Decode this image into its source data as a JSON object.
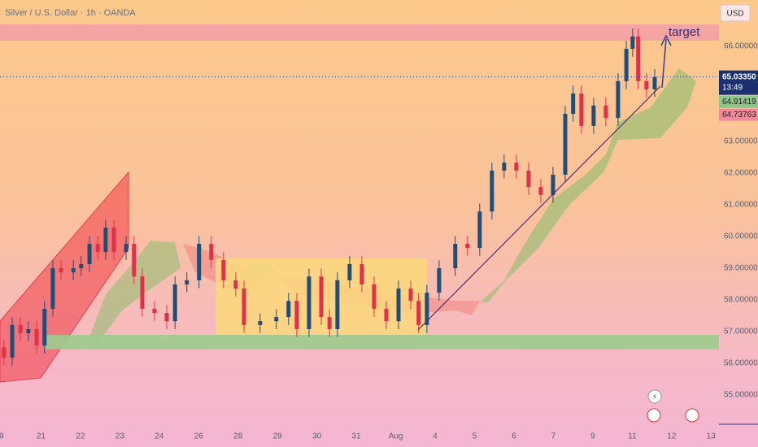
{
  "chart_data": {
    "type": "candlestick",
    "title": "Silver / U.S. Dollar · 1h · OANDA",
    "currency": "USD",
    "annotation": "target",
    "ylim": [
      54.08,
      67.46
    ],
    "xlim": [
      -0.04,
      18.2
    ],
    "grid": false,
    "yticks": [
      {
        "value": 66,
        "label": "66.00000"
      },
      {
        "value": 63,
        "label": "63.00000"
      },
      {
        "value": 62,
        "label": "62.00000"
      },
      {
        "value": 61,
        "label": "61.00000"
      },
      {
        "value": 60,
        "label": "60.00000"
      },
      {
        "value": 59,
        "label": "59.00000"
      },
      {
        "value": 58,
        "label": "58.00000"
      },
      {
        "value": 57,
        "label": "57.00000"
      },
      {
        "value": 56,
        "label": "56.00000"
      },
      {
        "value": 55,
        "label": "55.00000"
      }
    ],
    "xticks": [
      {
        "value": 0,
        "label": "9"
      },
      {
        "value": 1,
        "label": "21"
      },
      {
        "value": 2,
        "label": "22"
      },
      {
        "value": 3,
        "label": "23"
      },
      {
        "value": 4,
        "label": "24"
      },
      {
        "value": 5,
        "label": "26"
      },
      {
        "value": 6,
        "label": "28"
      },
      {
        "value": 7,
        "label": "29"
      },
      {
        "value": 8,
        "label": "30"
      },
      {
        "value": 9,
        "label": "31"
      },
      {
        "value": 10,
        "label": "Aug"
      },
      {
        "value": 11,
        "label": "4"
      },
      {
        "value": 12,
        "label": "5"
      },
      {
        "value": 13,
        "label": "6"
      },
      {
        "value": 14,
        "label": "7"
      },
      {
        "value": 15,
        "label": "9"
      },
      {
        "value": 16,
        "label": "11"
      },
      {
        "value": 17,
        "label": "12"
      },
      {
        "value": 18,
        "label": "13"
      }
    ],
    "up_color": "#1f4e79",
    "down_color": "#e0314b",
    "x": [
      0.06,
      0.27,
      0.48,
      0.68,
      0.89,
      1.09,
      1.3,
      1.51,
      1.82,
      2.02,
      2.23,
      2.44,
      2.64,
      2.85,
      3.16,
      3.36,
      3.57,
      3.88,
      4.19,
      4.4,
      4.7,
      5.01,
      5.32,
      5.63,
      5.94,
      6.15,
      6.56,
      6.97,
      7.28,
      7.49,
      7.8,
      8.11,
      8.32,
      8.52,
      8.83,
      9.14,
      9.45,
      9.76,
      10.07,
      10.38,
      10.58,
      10.79,
      11.1,
      11.51,
      11.82,
      12.13,
      12.44,
      12.75,
      13.06,
      13.37,
      13.68,
      13.99,
      14.3,
      14.5,
      14.71,
      15.02,
      15.33,
      15.64,
      15.85,
      16.01,
      16.15,
      16.36,
      16.57
    ],
    "open": [
      56.5,
      56.18,
      57.21,
      56.95,
      57.08,
      56.56,
      57.72,
      59.0,
      58.87,
      59.0,
      59.13,
      59.77,
      59.51,
      60.28,
      59.51,
      59.77,
      58.74,
      57.72,
      57.59,
      57.33,
      58.49,
      58.62,
      59.77,
      59.26,
      58.62,
      58.36,
      57.21,
      57.33,
      57.46,
      57.97,
      57.08,
      58.74,
      57.46,
      57.08,
      58.62,
      59.13,
      58.49,
      57.72,
      57.33,
      58.36,
      57.97,
      57.21,
      58.23,
      59.0,
      59.77,
      59.64,
      60.79,
      62.08,
      62.33,
      62.08,
      61.56,
      61.31,
      61.95,
      63.87,
      64.51,
      63.49,
      64.13,
      63.74,
      64.9,
      65.92,
      66.31,
      64.9,
      64.64
    ],
    "high": [
      56.75,
      57.46,
      57.46,
      57.33,
      57.33,
      57.97,
      59.25,
      59.25,
      59.25,
      59.38,
      60.02,
      60.02,
      60.53,
      60.53,
      60.02,
      60.02,
      58.99,
      57.97,
      57.84,
      58.74,
      58.87,
      60.02,
      60.02,
      59.51,
      58.87,
      58.61,
      57.58,
      57.71,
      58.22,
      58.22,
      58.99,
      58.99,
      57.71,
      58.87,
      59.38,
      59.38,
      58.74,
      57.97,
      58.61,
      58.61,
      58.22,
      58.48,
      59.25,
      60.02,
      60.02,
      61.04,
      62.33,
      62.58,
      62.58,
      62.33,
      61.81,
      62.2,
      64.12,
      64.76,
      64.76,
      64.38,
      64.38,
      65.15,
      66.17,
      66.56,
      66.56,
      65.15,
      65.28
    ],
    "low": [
      55.93,
      55.93,
      56.7,
      56.7,
      56.31,
      56.31,
      57.47,
      58.62,
      58.62,
      58.75,
      58.88,
      59.26,
      59.26,
      59.26,
      59.26,
      58.49,
      57.47,
      57.34,
      57.08,
      57.08,
      58.24,
      58.37,
      59.01,
      58.37,
      58.11,
      56.96,
      56.96,
      57.08,
      57.21,
      56.83,
      56.83,
      57.21,
      56.83,
      56.83,
      58.37,
      58.24,
      57.47,
      57.08,
      57.08,
      57.72,
      56.96,
      56.96,
      57.98,
      58.75,
      59.39,
      59.39,
      60.54,
      61.83,
      61.83,
      61.31,
      61.06,
      61.06,
      61.7,
      63.62,
      63.24,
      63.24,
      63.49,
      63.49,
      64.65,
      65.67,
      64.65,
      64.39,
      64.39
    ],
    "close": [
      56.18,
      57.21,
      56.95,
      57.08,
      56.56,
      57.72,
      59.0,
      58.87,
      59.0,
      59.13,
      59.77,
      59.51,
      60.28,
      59.51,
      59.77,
      58.74,
      57.72,
      57.59,
      57.33,
      58.49,
      58.62,
      59.77,
      59.26,
      58.62,
      58.36,
      57.21,
      57.33,
      57.46,
      57.97,
      57.08,
      58.74,
      57.46,
      57.08,
      58.62,
      59.13,
      58.49,
      57.72,
      57.33,
      58.36,
      57.97,
      57.21,
      58.23,
      59.0,
      59.77,
      59.64,
      60.79,
      62.08,
      62.33,
      62.08,
      61.56,
      61.31,
      61.95,
      63.87,
      64.51,
      63.49,
      64.13,
      63.74,
      64.9,
      65.92,
      66.31,
      64.9,
      64.64,
      65.03
    ],
    "zones": [
      {
        "xlim": [
          -0.04,
          18.2
        ],
        "ylim": [
          66.18,
          66.69
        ],
        "color": "#f4a0a6"
      },
      {
        "xlim": [
          1.09,
          18.2
        ],
        "ylim": [
          56.44,
          56.9
        ],
        "color": "#9ccc8c"
      },
      {
        "xlim": [
          5.43,
          10.79
        ],
        "ylim": [
          56.9,
          59.31
        ],
        "color": "#fcd77e"
      }
    ],
    "last_price": {
      "value": 65.0335,
      "label": "65.03350",
      "color": "#1c2f6e"
    },
    "countdown": "13:49",
    "price_tags": [
      {
        "value": 64.91419,
        "label": "64.91419",
        "color": "#8fc48a"
      },
      {
        "value": 64.73763,
        "label": "64.73763",
        "color": "#f08a9a"
      }
    ]
  }
}
